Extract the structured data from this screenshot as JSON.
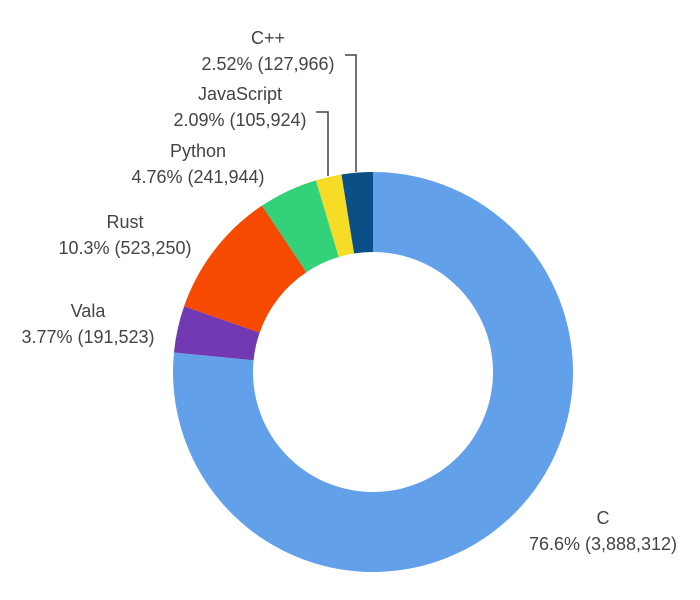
{
  "chart_data": {
    "type": "pie",
    "donut": true,
    "start": "top",
    "direction": "clockwise",
    "slices": [
      {
        "label": "C",
        "percent": "76.6%",
        "value": 3888312,
        "value_text": "(3,888,312)",
        "color": "#62a0ea"
      },
      {
        "label": "Vala",
        "percent": "3.77%",
        "value": 191523,
        "value_text": "(191,523)",
        "color": "#7239b3"
      },
      {
        "label": "Rust",
        "percent": "10.3%",
        "value": 523250,
        "value_text": "(523,250)",
        "color": "#f54a00"
      },
      {
        "label": "Python",
        "percent": "4.76%",
        "value": 241944,
        "value_text": "(241,944)",
        "color": "#33d17a"
      },
      {
        "label": "JavaScript",
        "percent": "2.09%",
        "value": 105924,
        "value_text": "(105,924)",
        "color": "#f6dc27"
      },
      {
        "label": "C++",
        "percent": "2.52%",
        "value": 127966,
        "value_text": "(127,966)",
        "color": "#0b4f87"
      }
    ]
  }
}
